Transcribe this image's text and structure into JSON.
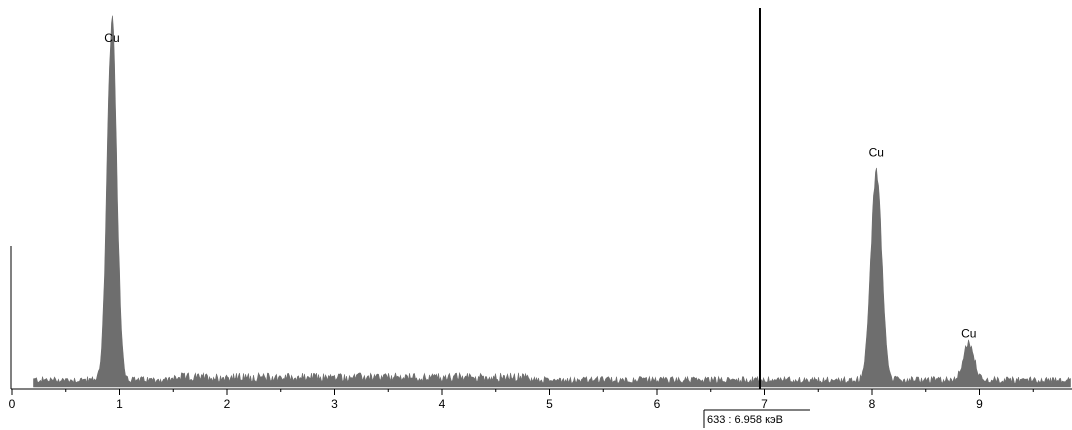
{
  "chart_data": {
    "type": "area",
    "title": "",
    "xlabel": "",
    "ylabel": "",
    "xlim": [
      0,
      9.85
    ],
    "ylim": [
      0,
      1.0
    ],
    "grid": false,
    "x_ticks": [
      0,
      1,
      2,
      3,
      4,
      5,
      6,
      7,
      8,
      9
    ],
    "x_tick_labels": [
      "0",
      "1",
      "2",
      "3",
      "4",
      "5",
      "6",
      "7",
      "8",
      "9"
    ],
    "background_level": 0.02,
    "spectrum_start": 0.2,
    "peaks": [
      {
        "label": "Cu",
        "x": 0.93,
        "height": 0.98,
        "width": 0.045
      },
      {
        "label": "Cu",
        "x": 8.04,
        "height": 0.58,
        "width": 0.05
      },
      {
        "label": "Cu",
        "x": 8.9,
        "height": 0.1,
        "width": 0.05
      }
    ],
    "cursor": {
      "x": 6.958,
      "readout": "633 : 6.958 кэВ"
    },
    "colors": {
      "spectrum": "#6e6e6e",
      "cursor": "#000000",
      "axis": "#000000"
    }
  }
}
